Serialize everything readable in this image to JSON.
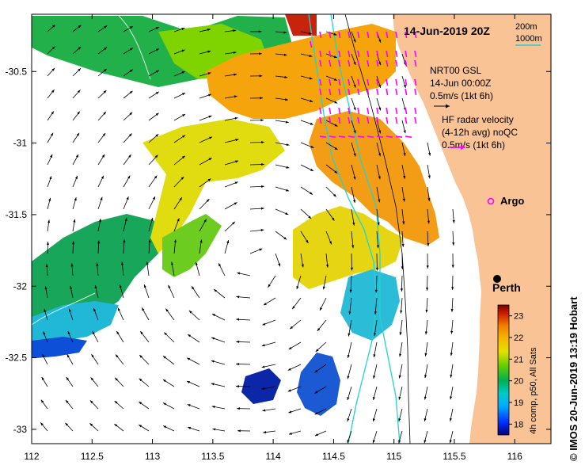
{
  "map": {
    "title": "14-Jun-2019 20Z",
    "depth_legend": {
      "line1": "200m",
      "line2": "1000m"
    },
    "gsl_legend": {
      "line1": "NRT00 GSL",
      "line2": "14-Jun 00:00Z",
      "line3": "0.5m/s (1kt 6h)"
    },
    "radar_legend": {
      "line1": "HF radar velocity",
      "line2": "(4-12h avg) noQC",
      "line3": "0.5m/s (1kt 6h)"
    },
    "argo_label": "Argo",
    "city_label": "Perth",
    "colorbar": {
      "label": "4h comp, p50, All Sats",
      "ticks": [
        "18",
        "19",
        "20",
        "21",
        "22",
        "23"
      ],
      "min": 17.5,
      "max": 23.5
    },
    "credit": "© IMOS 20-Jun-2019 13:19 Hobart",
    "x_axis": {
      "ticks": [
        "112",
        "112.5",
        "113",
        "113.5",
        "114",
        "114.5",
        "115",
        "115.5",
        "116"
      ],
      "range": [
        112,
        116.3
      ]
    },
    "y_axis": {
      "ticks": [
        "-30.5",
        "-31",
        "-31.5",
        "-32",
        "-32.5",
        "-33"
      ],
      "range": [
        -33.1,
        -30.1
      ]
    },
    "colors": {
      "land": "#f9c396",
      "isobath_200m": "#000000",
      "isobath_1000m": "#22d3d0",
      "radar_vectors": "#ff00ff",
      "gsl_vectors": "#000000",
      "argo_marker": "#ff00ff"
    },
    "city": {
      "name_ref": "Perth",
      "lon": 115.86,
      "lat": -31.95
    },
    "argo": {
      "lon": 115.75,
      "lat": -31.4
    }
  }
}
